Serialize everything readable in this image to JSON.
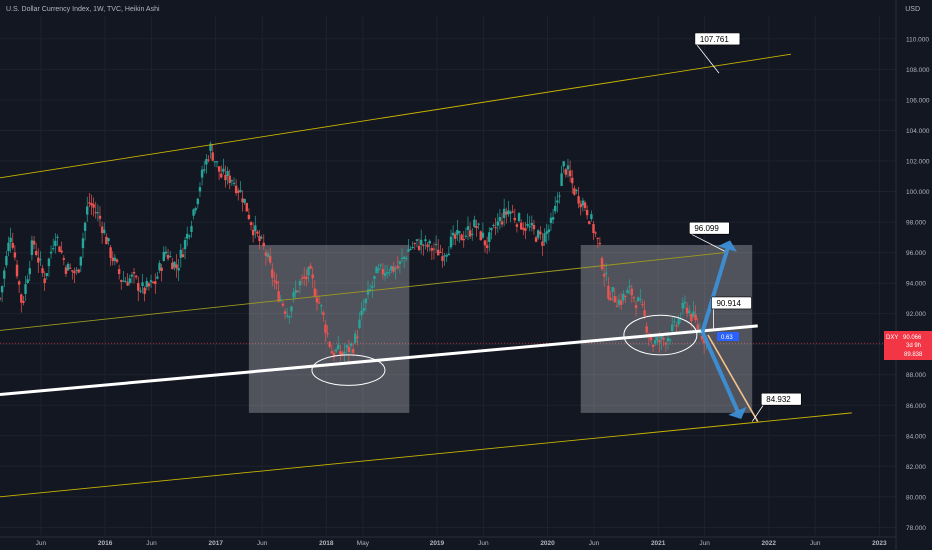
{
  "header": {
    "title": "U.S. Dollar Currency Index, 1W, TVC, Heikin Ashi",
    "currency": "USD"
  },
  "price_badge": {
    "symbol": "DXY",
    "value": "90.066",
    "countdown": "3d 9h",
    "low_value": "89.838",
    "badge_color": "#f23645"
  },
  "small_label": "0.63",
  "chart_data": {
    "type": "candlestick",
    "title": "U.S. Dollar Currency Index, 1W, TVC, Heikin Ashi",
    "ylim": [
      77.5,
      111.5
    ],
    "y_ticks": [
      "78.000",
      "80.000",
      "82.000",
      "84.000",
      "86.000",
      "88.000",
      "90.000",
      "92.000",
      "94.000",
      "96.000",
      "98.000",
      "100.000",
      "102.000",
      "104.000",
      "106.000",
      "108.000",
      "110.000"
    ],
    "x_ticks": [
      {
        "label": "Jun",
        "x": 2015.42
      },
      {
        "label": "2016",
        "x": 2016.0
      },
      {
        "label": "Jun",
        "x": 2016.42
      },
      {
        "label": "2017",
        "x": 2017.0
      },
      {
        "label": "Jun",
        "x": 2017.42
      },
      {
        "label": "2018",
        "x": 2018.0
      },
      {
        "label": "May",
        "x": 2018.33
      },
      {
        "label": "2019",
        "x": 2019.0
      },
      {
        "label": "Jun",
        "x": 2019.42
      },
      {
        "label": "2020",
        "x": 2020.0
      },
      {
        "label": "Jun",
        "x": 2020.42
      },
      {
        "label": "2021",
        "x": 2021.0
      },
      {
        "label": "Jun",
        "x": 2021.42
      },
      {
        "label": "2022",
        "x": 2022.0
      },
      {
        "label": "Jun",
        "x": 2022.42
      },
      {
        "label": "2023",
        "x": 2023.0
      }
    ],
    "xlim": [
      2015.05,
      2023.15
    ],
    "up_color": "#26a69a",
    "down_color": "#ef5350",
    "path": [
      [
        2015.05,
        93.0
      ],
      [
        2015.15,
        97.5
      ],
      [
        2015.25,
        92.5
      ],
      [
        2015.35,
        96.8
      ],
      [
        2015.45,
        94.2
      ],
      [
        2015.55,
        97.3
      ],
      [
        2015.65,
        95.0
      ],
      [
        2015.75,
        94.6
      ],
      [
        2015.85,
        99.4
      ],
      [
        2015.95,
        98.3
      ],
      [
        2016.05,
        96.0
      ],
      [
        2016.15,
        94.2
      ],
      [
        2016.25,
        94.3
      ],
      [
        2016.35,
        93.5
      ],
      [
        2016.45,
        94.0
      ],
      [
        2016.55,
        96.1
      ],
      [
        2016.65,
        95.0
      ],
      [
        2016.75,
        97.3
      ],
      [
        2016.85,
        100.3
      ],
      [
        2016.95,
        102.9
      ],
      [
        2017.05,
        101.0
      ],
      [
        2017.15,
        100.9
      ],
      [
        2017.25,
        99.6
      ],
      [
        2017.35,
        97.4
      ],
      [
        2017.45,
        96.0
      ],
      [
        2017.55,
        93.6
      ],
      [
        2017.65,
        92.0
      ],
      [
        2017.75,
        93.9
      ],
      [
        2017.85,
        94.6
      ],
      [
        2017.95,
        92.4
      ],
      [
        2018.05,
        89.5
      ],
      [
        2018.15,
        89.4
      ],
      [
        2018.25,
        90.0
      ],
      [
        2018.35,
        92.6
      ],
      [
        2018.45,
        94.5
      ],
      [
        2018.55,
        95.0
      ],
      [
        2018.65,
        95.0
      ],
      [
        2018.75,
        96.3
      ],
      [
        2018.85,
        96.6
      ],
      [
        2018.95,
        96.3
      ],
      [
        2019.05,
        96.0
      ],
      [
        2019.15,
        96.8
      ],
      [
        2019.25,
        97.2
      ],
      [
        2019.35,
        97.8
      ],
      [
        2019.45,
        96.5
      ],
      [
        2019.55,
        97.9
      ],
      [
        2019.65,
        98.8
      ],
      [
        2019.75,
        98.0
      ],
      [
        2019.85,
        97.5
      ],
      [
        2019.95,
        96.8
      ],
      [
        2020.05,
        98.0
      ],
      [
        2020.15,
        101.8
      ],
      [
        2020.25,
        100.0
      ],
      [
        2020.35,
        99.0
      ],
      [
        2020.45,
        96.8
      ],
      [
        2020.55,
        93.5
      ],
      [
        2020.65,
        92.8
      ],
      [
        2020.75,
        93.5
      ],
      [
        2020.85,
        92.3
      ],
      [
        2020.95,
        90.0
      ],
      [
        2021.05,
        90.3
      ],
      [
        2021.15,
        91.0
      ],
      [
        2021.25,
        92.6
      ],
      [
        2021.35,
        91.2
      ],
      [
        2021.45,
        90.1
      ]
    ],
    "annotations": [
      {
        "label": "107.761",
        "y": 107.761
      },
      {
        "label": "96.099",
        "y": 96.099
      },
      {
        "label": "90.914",
        "y": 90.914
      },
      {
        "label": "84.932",
        "y": 84.932
      }
    ],
    "drawings": {
      "upper_channel_top": [
        [
          2015.05,
          100.9
        ],
        [
          2022.2,
          109.0
        ]
      ],
      "upper_channel_mid": [
        [
          2015.05,
          90.9
        ],
        [
          2021.6,
          96.0
        ]
      ],
      "lower_channel": [
        [
          2015.05,
          80.0
        ],
        [
          2022.75,
          85.5
        ]
      ],
      "white_trendline": [
        [
          2015.05,
          86.7
        ],
        [
          2021.9,
          91.2
        ]
      ],
      "box_1": [
        [
          2017.3,
          96.5
        ],
        [
          2018.75,
          85.5
        ]
      ],
      "box_2": [
        [
          2020.3,
          96.5
        ],
        [
          2021.85,
          85.5
        ]
      ],
      "ellipse_1": {
        "cx": 2018.2,
        "cy": 88.3,
        "rx": 0.33,
        "ry": 1.0
      },
      "ellipse_2": {
        "cx": 2021.02,
        "cy": 90.6,
        "rx": 0.33,
        "ry": 1.3
      },
      "arrow_up": [
        [
          2021.4,
          90.8
        ],
        [
          2021.65,
          96.8
        ]
      ],
      "arrow_down": [
        [
          2021.4,
          90.8
        ],
        [
          2021.75,
          85.1
        ]
      ],
      "orange_line": [
        [
          2021.45,
          90.6
        ],
        [
          2021.9,
          84.93
        ]
      ]
    }
  }
}
